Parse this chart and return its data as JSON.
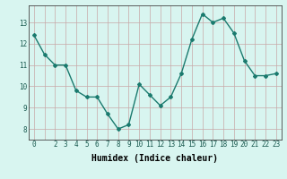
{
  "x": [
    0,
    1,
    2,
    3,
    4,
    5,
    6,
    7,
    8,
    9,
    10,
    11,
    12,
    13,
    14,
    15,
    16,
    17,
    18,
    19,
    20,
    21,
    22,
    23
  ],
  "y": [
    12.4,
    11.5,
    11.0,
    11.0,
    9.8,
    9.5,
    9.5,
    8.7,
    8.0,
    8.2,
    10.1,
    9.6,
    9.1,
    9.5,
    10.6,
    12.2,
    13.4,
    13.0,
    13.2,
    12.5,
    11.2,
    10.5,
    10.5,
    10.6
  ],
  "line_color": "#1a7a6e",
  "marker": "D",
  "marker_size": 2,
  "bg_color": "#d8f5f0",
  "grid_color": "#c8a8a8",
  "xlabel": "Humidex (Indice chaleur)",
  "ylabel": "",
  "ylim": [
    7.5,
    13.8
  ],
  "xlim": [
    -0.5,
    23.5
  ],
  "yticks": [
    8,
    9,
    10,
    11,
    12,
    13
  ],
  "xtick_labels": [
    "0",
    "",
    "2",
    "3",
    "4",
    "5",
    "6",
    "7",
    "8",
    "9",
    "10",
    "11",
    "12",
    "13",
    "14",
    "15",
    "16",
    "17",
    "18",
    "19",
    "20",
    "21",
    "22",
    "23"
  ],
  "xticks": [
    0,
    1,
    2,
    3,
    4,
    5,
    6,
    7,
    8,
    9,
    10,
    11,
    12,
    13,
    14,
    15,
    16,
    17,
    18,
    19,
    20,
    21,
    22,
    23
  ],
  "tick_fontsize": 5.5,
  "xlabel_fontsize": 7,
  "linewidth": 1.0
}
